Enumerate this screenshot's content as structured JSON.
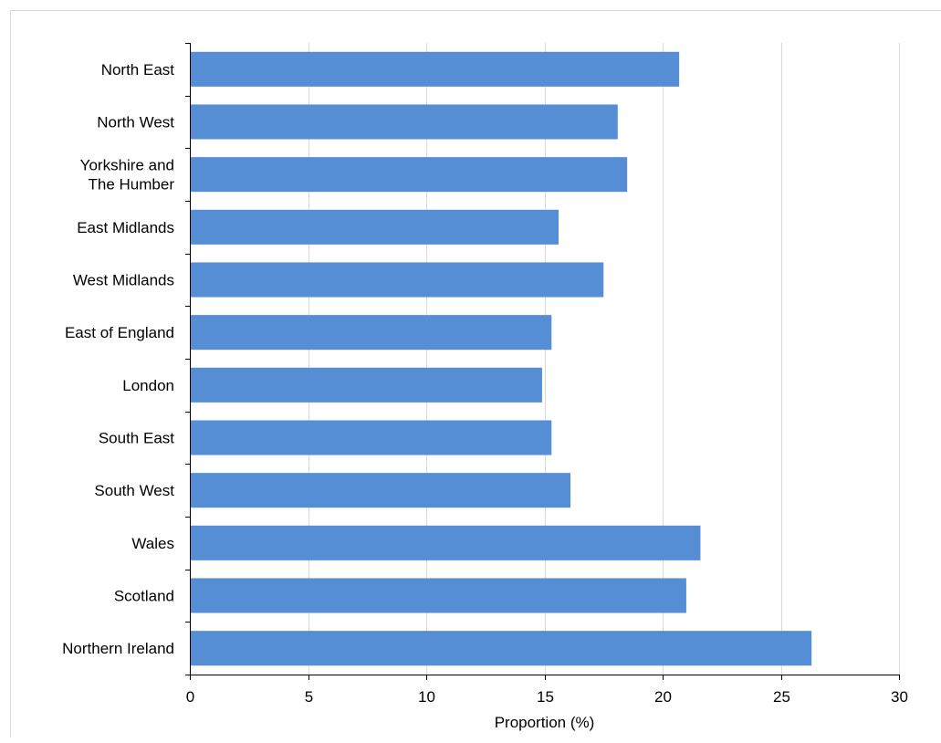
{
  "chart_data": {
    "type": "bar",
    "orientation": "horizontal",
    "categories": [
      "North East",
      "North West",
      "Yorkshire and The Humber",
      "East Midlands",
      "West Midlands",
      "East of England",
      "London",
      "South East",
      "South West",
      "Wales",
      "Scotland",
      "Northern Ireland"
    ],
    "category_lines": [
      [
        "North East"
      ],
      [
        "North West"
      ],
      [
        "Yorkshire and",
        "The Humber"
      ],
      [
        "East Midlands"
      ],
      [
        "West Midlands"
      ],
      [
        "East of England"
      ],
      [
        "London"
      ],
      [
        "South East"
      ],
      [
        "South West"
      ],
      [
        "Wales"
      ],
      [
        "Scotland"
      ],
      [
        "Northern Ireland"
      ]
    ],
    "values": [
      20.7,
      18.1,
      18.5,
      15.6,
      17.5,
      15.3,
      14.9,
      15.3,
      16.1,
      21.6,
      21.0,
      26.3
    ],
    "xlabel": "Proportion (%)",
    "ylabel": "",
    "xlim": [
      0,
      30
    ],
    "xticks": [
      "0",
      "5",
      "10",
      "15",
      "20",
      "25",
      "30"
    ],
    "grid": "vertical",
    "legend": "none",
    "colors": {
      "bar": "#558ed5",
      "grid": "#d9d9d9",
      "axis": "#000000",
      "frame": "#d9d9d9"
    }
  }
}
